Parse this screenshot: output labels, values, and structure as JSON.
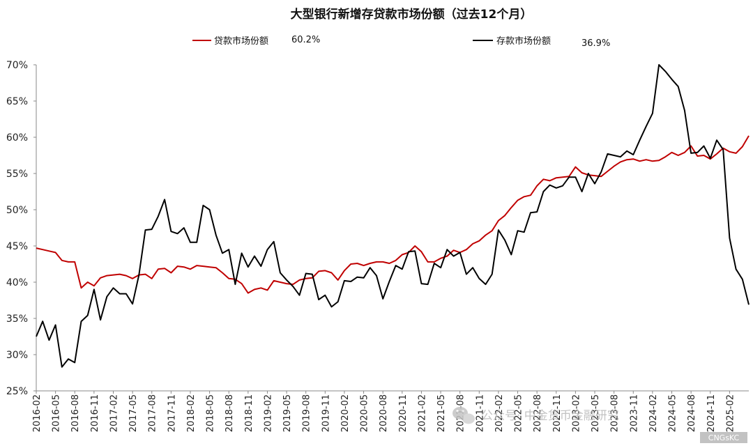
{
  "chart_data": {
    "type": "line",
    "title": "大型银行新增存贷款市场份额（过去12个月）",
    "xlabel": "",
    "ylabel": "",
    "ylim": [
      25,
      70
    ],
    "y_ticks": [
      "70%",
      "65%",
      "60%",
      "55%",
      "50%",
      "45%",
      "40%",
      "35%",
      "30%",
      "25%"
    ],
    "x_tick_labels": [
      "2016-02",
      "2016-05",
      "2016-08",
      "2016-11",
      "2017-02",
      "2017-05",
      "2017-08",
      "2017-11",
      "2018-02",
      "2018-05",
      "2018-08",
      "2018-11",
      "2019-02",
      "2019-05",
      "2019-08",
      "2019-11",
      "2020-02",
      "2020-05",
      "2020-08",
      "2020-11",
      "2021-02",
      "2021-05",
      "2021-08",
      "2021-11",
      "2022-02",
      "2022-05",
      "2022-08",
      "2022-11",
      "2023-02",
      "2023-05",
      "2023-08",
      "2023-11",
      "2024-02",
      "2024-05",
      "2024-08",
      "2024-11",
      "2025-02"
    ],
    "grid": false,
    "legend_position": "top",
    "series": [
      {
        "name": "贷款市场份额",
        "legend_value": "60.2%",
        "color": "#c00000",
        "values": [
          44.7,
          44.5,
          44.3,
          44.1,
          43.0,
          42.8,
          42.8,
          39.2,
          40.0,
          39.5,
          40.6,
          40.9,
          41.0,
          41.1,
          40.9,
          40.5,
          41.0,
          41.1,
          40.5,
          41.8,
          41.9,
          41.3,
          42.2,
          42.1,
          41.8,
          42.3,
          42.2,
          42.1,
          42.0,
          41.3,
          40.5,
          40.4,
          39.8,
          38.5,
          39.0,
          39.2,
          38.9,
          40.2,
          40.0,
          39.8,
          39.7,
          40.3,
          40.5,
          40.6,
          41.5,
          41.6,
          41.3,
          40.3,
          41.6,
          42.5,
          42.6,
          42.3,
          42.6,
          42.8,
          42.8,
          42.6,
          43.0,
          43.8,
          44.1,
          45.0,
          44.2,
          42.8,
          42.8,
          43.3,
          43.6,
          44.4,
          44.1,
          44.5,
          45.3,
          45.7,
          46.5,
          47.1,
          48.5,
          49.2,
          50.3,
          51.3,
          51.8,
          52.0,
          53.3,
          54.2,
          54.0,
          54.4,
          54.5,
          54.6,
          55.9,
          55.1,
          54.8,
          54.7,
          54.6,
          55.3,
          56.0,
          56.6,
          56.9,
          57.0,
          56.7,
          56.9,
          56.7,
          56.8,
          57.3,
          57.9,
          57.5,
          57.9,
          58.8,
          57.4,
          57.5,
          57.0,
          57.7,
          58.5,
          58.0,
          57.8,
          58.7,
          60.2
        ]
      },
      {
        "name": "存款市场份额",
        "legend_value": "36.9%",
        "color": "#000000",
        "values": [
          32.5,
          34.6,
          32.0,
          34.1,
          28.3,
          29.4,
          28.9,
          34.6,
          35.4,
          39.0,
          34.8,
          38.0,
          39.2,
          38.4,
          38.4,
          37.0,
          41.0,
          47.2,
          47.3,
          49.1,
          51.4,
          47.0,
          46.7,
          47.5,
          45.5,
          45.5,
          50.6,
          50.0,
          46.5,
          44.0,
          44.5,
          39.7,
          44.0,
          42.1,
          43.6,
          42.2,
          44.5,
          45.6,
          41.3,
          40.3,
          39.4,
          38.2,
          41.2,
          41.1,
          37.6,
          38.2,
          36.6,
          37.3,
          40.2,
          40.1,
          40.7,
          40.6,
          42.0,
          40.9,
          37.7,
          40.1,
          42.3,
          41.8,
          44.2,
          44.3,
          39.8,
          39.7,
          42.6,
          42.0,
          44.5,
          43.6,
          44.1,
          41.1,
          42.0,
          40.5,
          39.7,
          41.1,
          47.2,
          45.8,
          43.8,
          47.1,
          46.9,
          49.6,
          49.7,
          52.5,
          53.4,
          53.0,
          53.3,
          54.5,
          54.5,
          52.5,
          55.0,
          53.6,
          55.2,
          57.7,
          57.5,
          57.3,
          58.1,
          57.6,
          59.6,
          61.5,
          63.3,
          70.0,
          69.1,
          68.0,
          67.0,
          63.7,
          57.8,
          57.9,
          58.8,
          57.1,
          59.6,
          58.3,
          46.1,
          41.8,
          40.4,
          36.9
        ]
      }
    ]
  },
  "watermark": {
    "icon": "wechat-icon",
    "text": "公众号· 中金货币金融研究"
  },
  "corner_mark": "CNGsKC"
}
